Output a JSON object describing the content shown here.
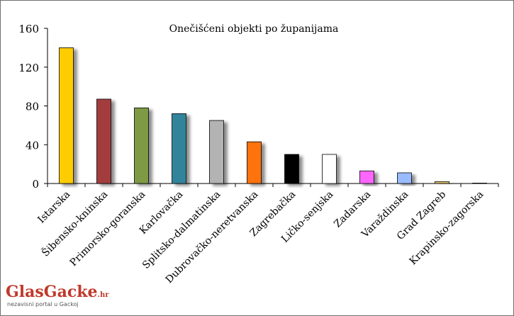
{
  "chart_data": {
    "type": "bar",
    "title": "Onečišćeni objekti po županijama",
    "categories": [
      "Istarska",
      "Šibensko-kninska",
      "Primorsko-goranska",
      "Karlovačka",
      "Splitsko-dalmatinska",
      "Dubrovačko-neretvanska",
      "Zagrebačka",
      "Ličko-senjska",
      "Zadarska",
      "Varaždinska",
      "Grad Zagreb",
      "Krapinsko-zagorska"
    ],
    "values": [
      140,
      87,
      78,
      72,
      65,
      43,
      30,
      30,
      13,
      11,
      2,
      0
    ],
    "colors": [
      "#ffcc00",
      "#a33d3d",
      "#7e9a45",
      "#31849b",
      "#b3b3b3",
      "#ff7310",
      "#000000",
      "#ffffff",
      "#ff66ff",
      "#99bbff",
      "#e0c470",
      "#d9d9d9"
    ],
    "ylim": [
      0,
      160
    ],
    "yticks": [
      0,
      40,
      80,
      120,
      160
    ],
    "grid": false,
    "legend": "none"
  },
  "logo": {
    "part1": "Glas",
    "part2": "Gacke",
    "suffix": ".hr",
    "tagline": "nezavisni portal u Gackoj"
  }
}
